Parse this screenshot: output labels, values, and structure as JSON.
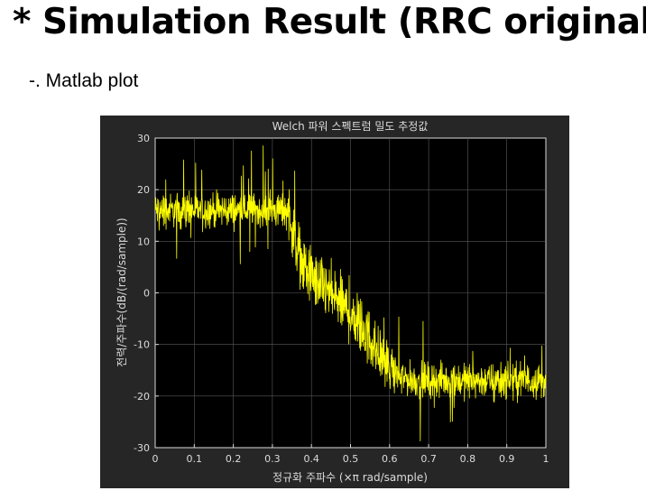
{
  "slide": {
    "title": "* Simulation Result (RRC original)",
    "subtitle": "-. Matlab plot"
  },
  "chart_data": {
    "type": "line",
    "title": "Welch 파워 스펙트럼 밀도 추정값",
    "xlabel": "정규화 주파수  (×π rad/sample)",
    "ylabel": "전력/주파수(dB/(rad/sample))",
    "xlim": [
      0,
      1
    ],
    "ylim": [
      -30,
      30
    ],
    "xticks": [
      "0",
      "0.1",
      "0.2",
      "0.3",
      "0.4",
      "0.5",
      "0.6",
      "0.7",
      "0.8",
      "0.9",
      "1"
    ],
    "yticks": [
      "-30",
      "-20",
      "-10",
      "0",
      "10",
      "20",
      "30"
    ],
    "grid": true,
    "series": [
      {
        "color": "#ffff00",
        "x": [
          0,
          0.05,
          0.1,
          0.15,
          0.2,
          0.25,
          0.3,
          0.34,
          0.36,
          0.38,
          0.4,
          0.42,
          0.44,
          0.46,
          0.48,
          0.5,
          0.52,
          0.54,
          0.56,
          0.58,
          0.6,
          0.62,
          0.64,
          0.66,
          0.7,
          0.75,
          0.8,
          0.85,
          0.9,
          0.95,
          1
        ],
        "y": [
          16,
          16,
          16,
          16,
          16,
          16,
          16,
          16,
          10,
          5,
          3,
          1.5,
          0.5,
          -1,
          -2.5,
          -4,
          -6,
          -8,
          -10,
          -12.5,
          -15,
          -16,
          -16.5,
          -17,
          -17,
          -17,
          -17,
          -17,
          -17,
          -17,
          -17
        ]
      }
    ]
  }
}
